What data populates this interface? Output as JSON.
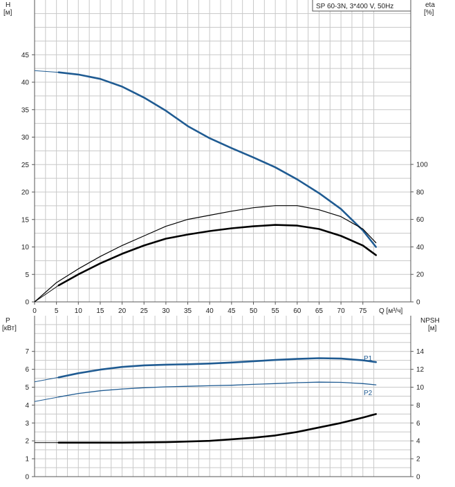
{
  "title_box": "SP 60-3N, 3*400 V, 50Hz",
  "colors": {
    "blue": "#1f5b92",
    "black": "#000000",
    "grid": "#c8c8c8",
    "frame": "#555555"
  },
  "chart_data": [
    {
      "type": "line",
      "title": "SP 60-3N, 3*400 V, 50Hz",
      "xlabel": "Q [м³/ч]",
      "ylabel": "H\n[м]",
      "y2label": "eta\n[%]",
      "xlim": [
        0,
        78
      ],
      "ylim": [
        0,
        50
      ],
      "y2lim": [
        0,
        125
      ],
      "xticks": [
        0,
        5,
        10,
        15,
        20,
        25,
        30,
        35,
        40,
        45,
        50,
        55,
        60,
        65,
        70,
        75
      ],
      "yticks": [
        0,
        5,
        10,
        15,
        20,
        25,
        30,
        35,
        40,
        45
      ],
      "y2ticks": [
        0,
        20,
        40,
        60,
        80,
        100
      ],
      "grid": true,
      "series": [
        {
          "role": "head",
          "axis": "y",
          "color": "#1f5b92",
          "x": [
            5.5,
            10,
            15,
            20,
            25,
            30,
            35,
            40,
            45,
            50,
            55,
            60,
            65,
            70,
            75,
            78
          ],
          "y": [
            41.8,
            41.4,
            40.6,
            39.2,
            37.2,
            34.8,
            32.0,
            29.8,
            28.0,
            26.3,
            24.5,
            22.3,
            19.8,
            16.9,
            13.0,
            10.0
          ],
          "ext_x": [
            0,
            5.5
          ],
          "ext_y": [
            42.1,
            41.8
          ]
        },
        {
          "role": "efficiency",
          "axis": "y2",
          "color": "#000000",
          "x": [
            0,
            5,
            10,
            15,
            20,
            25,
            30,
            35,
            40,
            45,
            50,
            55,
            60,
            65,
            70,
            75,
            78
          ],
          "y": [
            0,
            14,
            24,
            33,
            41,
            48,
            55,
            60,
            63,
            66,
            68.5,
            70,
            70,
            67,
            62,
            53,
            43
          ]
        },
        {
          "role": "efficiency-total",
          "axis": "y2",
          "color": "#000000",
          "x": [
            5.5,
            10,
            15,
            20,
            25,
            30,
            35,
            40,
            45,
            50,
            55,
            60,
            65,
            70,
            75,
            78
          ],
          "y": [
            12,
            20,
            28,
            35,
            41,
            46,
            49,
            51.5,
            53.5,
            55,
            56,
            55.5,
            53,
            48,
            41,
            34
          ],
          "ext_x": [
            0,
            5.5
          ],
          "ext_y": [
            0,
            12
          ]
        }
      ]
    },
    {
      "type": "line",
      "xlabel": "",
      "ylabel": "P\n[кВт]",
      "y2label": "NPSH\n[м]",
      "xlim": [
        0,
        78
      ],
      "ylim": [
        0,
        8.2
      ],
      "y2lim": [
        0,
        16.4
      ],
      "yticks": [
        0,
        1,
        2,
        3,
        4,
        5,
        6,
        7
      ],
      "y2ticks": [
        0,
        2,
        4,
        6,
        8,
        10,
        12,
        14
      ],
      "grid": true,
      "series": [
        {
          "name": "P1",
          "axis": "y",
          "color": "#1f5b92",
          "x": [
            5.5,
            10,
            15,
            20,
            25,
            30,
            35,
            40,
            45,
            50,
            55,
            60,
            65,
            70,
            75,
            78
          ],
          "y": [
            5.55,
            5.78,
            5.98,
            6.13,
            6.22,
            6.26,
            6.28,
            6.32,
            6.38,
            6.45,
            6.52,
            6.58,
            6.62,
            6.6,
            6.5,
            6.4
          ],
          "ext_x": [
            0,
            5.5
          ],
          "ext_y": [
            5.3,
            5.55
          ]
        },
        {
          "name": "P2",
          "axis": "y",
          "color": "#1f5b92",
          "x": [
            5.5,
            10,
            15,
            20,
            25,
            30,
            35,
            40,
            45,
            50,
            55,
            60,
            65,
            70,
            75,
            78
          ],
          "y": [
            4.45,
            4.65,
            4.8,
            4.9,
            4.97,
            5.02,
            5.05,
            5.08,
            5.11,
            5.16,
            5.2,
            5.25,
            5.28,
            5.27,
            5.2,
            5.13
          ],
          "ext_x": [
            0,
            5.5
          ],
          "ext_y": [
            4.2,
            4.45
          ]
        },
        {
          "role": "npsh",
          "axis": "y2",
          "color": "#000000",
          "x": [
            5.5,
            10,
            20,
            30,
            40,
            50,
            55,
            60,
            65,
            70,
            75,
            78
          ],
          "y": [
            3.8,
            3.8,
            3.8,
            3.85,
            4.0,
            4.35,
            4.6,
            5.0,
            5.5,
            6.0,
            6.6,
            7.0
          ],
          "ext_x": [
            0,
            5.5
          ],
          "ext_y": [
            3.8,
            3.8
          ]
        }
      ],
      "labels": [
        "P1",
        "P2"
      ]
    }
  ]
}
